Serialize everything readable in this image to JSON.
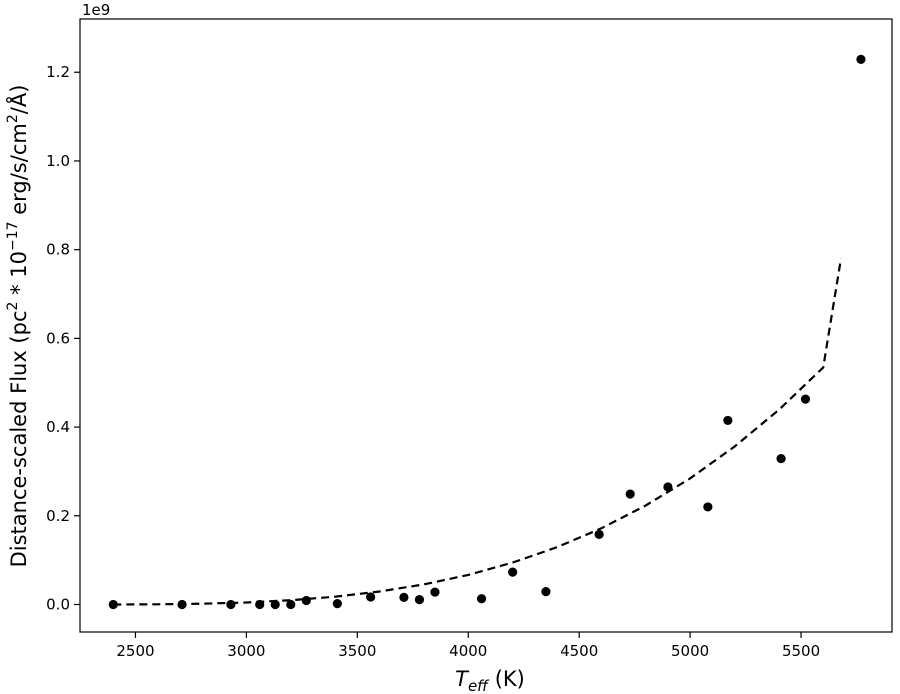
{
  "chart_data": {
    "type": "scatter",
    "xlabel": "T_eff (K)",
    "xlabel_parts": {
      "main": "T",
      "sub": "eff",
      "unit": " (K)"
    },
    "ylabel": "Distance-scaled Flux (pc^2 * 10^-17 erg/s/cm^2/Å)",
    "ylabel_parts": {
      "p1": "Distance-scaled Flux (pc",
      "sup1": "2",
      "p2": " * 10",
      "sup2": "−17",
      "p3": " erg/s/cm",
      "sup3": "2",
      "p4": "/Å)"
    },
    "y_offset_label": "1e9",
    "xlim": [
      2250,
      5910
    ],
    "ylim": [
      -0.062,
      1.32
    ],
    "x_ticks": [
      2500,
      3000,
      3500,
      4000,
      4500,
      5000,
      5500
    ],
    "x_tick_labels": [
      "2500",
      "3000",
      "3500",
      "4000",
      "4500",
      "5000",
      "5500"
    ],
    "y_ticks": [
      0.0,
      0.2,
      0.4,
      0.6,
      0.8,
      1.0,
      1.2
    ],
    "y_tick_labels": [
      "0.0",
      "0.2",
      "0.4",
      "0.6",
      "0.8",
      "1.0",
      "1.2"
    ],
    "grid": false,
    "series": [
      {
        "kind": "scatter",
        "color": "#000000",
        "x": [
          2400,
          2710,
          2930,
          3060,
          3130,
          3200,
          3270,
          3410,
          3560,
          3710,
          3780,
          3850,
          4060,
          4200,
          4350,
          4590,
          4730,
          4900,
          5080,
          5170,
          5410,
          5520,
          5770
        ],
        "y": [
          0.0,
          0.0,
          0.0,
          0.0,
          0.0,
          0.0,
          0.009,
          0.002,
          0.017,
          0.016,
          0.011,
          0.028,
          0.013,
          0.073,
          0.029,
          0.158,
          0.249,
          0.265,
          0.22,
          0.415,
          0.329,
          0.463,
          1.229
        ]
      },
      {
        "kind": "fit-line",
        "color": "#000000",
        "dashed": true,
        "x": [
          2400,
          2600,
          2800,
          3000,
          3200,
          3400,
          3600,
          3800,
          4000,
          4200,
          4400,
          4600,
          4800,
          5000,
          5200,
          5400,
          5600,
          5680
        ],
        "y": [
          0.0,
          0.0004,
          0.0017,
          0.0045,
          0.0096,
          0.0175,
          0.0292,
          0.0453,
          0.0668,
          0.0945,
          0.1292,
          0.1718,
          0.2232,
          0.2842,
          0.3559,
          0.439,
          0.5344,
          0.78
        ]
      }
    ]
  }
}
